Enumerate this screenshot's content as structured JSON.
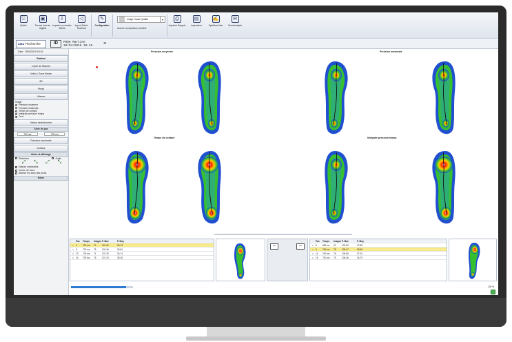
{
  "ribbon": {
    "buttons": [
      {
        "icon": "exit-icon",
        "label": "Quitter"
      },
      {
        "icon": "close-all-icon",
        "label": "Fermer tous les onglets"
      },
      {
        "icon": "import-icon",
        "label": "Importer un dossier Zebris"
      },
      {
        "icon": "sound-icon",
        "label": "Import Zebris Touchout"
      },
      {
        "icon": "config-icon",
        "label": "Configuration"
      },
      {
        "icon": "print-icon",
        "label": "Imprimer Rapport"
      },
      {
        "icon": "save-icon",
        "label": "Impression"
      },
      {
        "icon": "synthesis-icon",
        "label": "Synthèse Auto"
      },
      {
        "icon": "mail-icon",
        "label": "Send analysis"
      }
    ],
    "quality_select": "Image Haute Qualité",
    "comparison_note": "Aucune comparaison possible"
  },
  "header": {
    "search_logo": "AMA",
    "search_label": "Recherche",
    "patient_line1": "PODO Martine",
    "patient_line2": "19/04/2016 18:16"
  },
  "sidebar": {
    "date": "Date : 19/04/2016 18:16",
    "buttons": [
      "Statical",
      "Cycle de Marche",
      "Vidéo / Zone filmée",
      "3D",
      "Pieds",
      "Vitesse"
    ],
    "image_group_title": "Image",
    "image_options": [
      "Pression moyenne",
      "Pression maximale",
      "Temps de contact",
      "Intégrale pression temps",
      "Tous"
    ],
    "image_selected_index": 4,
    "value_button": "Valeur sélectionnée",
    "step_series_title": "Série de pas",
    "step_values": [
      "700 ms",
      "790 ms"
    ],
    "pressure_label": "Pression maximale",
    "surface_button": "Surface",
    "axes_title": "Aides et affichage",
    "checks": [
      {
        "label": "Distances",
        "checked": true
      },
      {
        "label": "Angle",
        "checked": true
      },
      {
        "label": "Valeurs maximales",
        "checked": true
      },
      {
        "label": "Centre de force",
        "checked": false
      },
      {
        "label": "Afficher les axes des pieds",
        "checked": false
      }
    ],
    "notes_label": "Notes"
  },
  "viewer": {
    "titles": [
      "Pression moyenne",
      "Pression maximale",
      "Temps de contact",
      "Intégrale pression temps"
    ]
  },
  "tables": {
    "headers": [
      "Pas",
      "Temps",
      "Images",
      "P. Max",
      "P. Moy"
    ],
    "left": [
      {
        "pas": "4",
        "temps": "700 ms",
        "images": "71",
        "pmax": "124.00",
        "pmoy": "36.13",
        "sel": true
      },
      {
        "pas": "5",
        "temps": "700 ms",
        "images": "75",
        "pmax": "102.46",
        "pmoy": "36.84",
        "sel": false
      },
      {
        "pas": "13",
        "temps": "700 ms",
        "images": "71",
        "pmax": "107.20",
        "pmoy": "34.74",
        "sel": false
      },
      {
        "pas": "14",
        "temps": "700 ms",
        "images": "75",
        "pmax": "107.32",
        "pmoy": "35.28",
        "sel": false
      }
    ],
    "right": [
      {
        "pas": "5",
        "temps": "680 ms",
        "images": "67",
        "pmax": "103.83",
        "pmoy": "37.88",
        "sel": false
      },
      {
        "pas": "6",
        "temps": "790 ms",
        "images": "75",
        "pmax": "109.47",
        "pmoy": "35.36",
        "sel": true
      },
      {
        "pas": "14",
        "temps": "700 ms",
        "images": "76",
        "pmax": "106.80",
        "pmoy": "37.20",
        "sel": false
      },
      {
        "pas": "15",
        "temps": "700 ms",
        "images": "75",
        "pmax": "106.36",
        "pmoy": "34.79",
        "sel": false
      }
    ]
  },
  "status": "100 %",
  "colors": {
    "accent": "#2f7bd1",
    "selection": "#f7ea8a"
  }
}
